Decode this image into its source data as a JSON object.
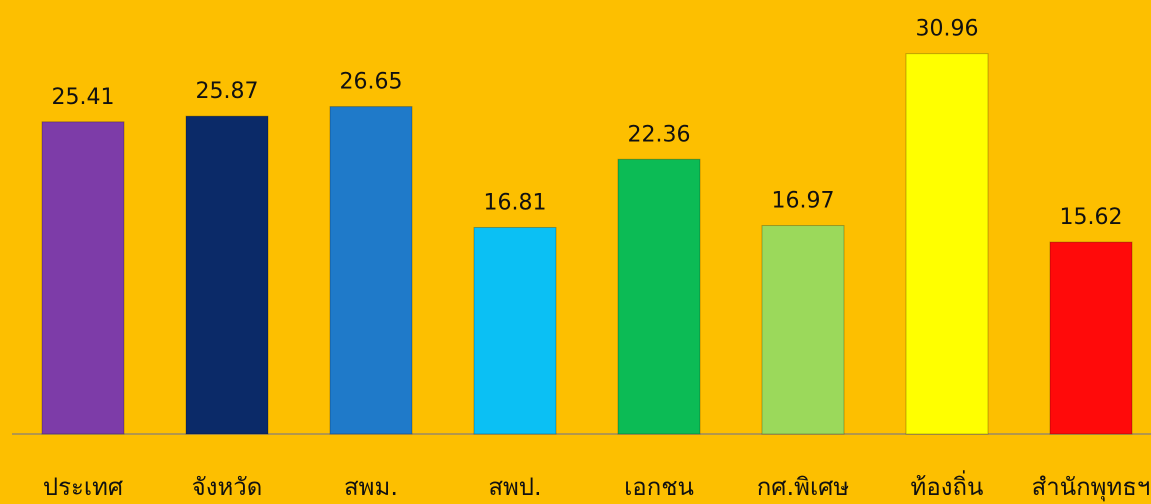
{
  "chart_data": {
    "type": "bar",
    "categories": [
      "ประเทศ",
      "จังหวัด",
      "สพม.",
      "สพป.",
      "เอกชน",
      "กศ.พิเศษ",
      "ท้องถิ่น",
      "สำนักพุทธฯ"
    ],
    "values": [
      25.41,
      25.87,
      26.65,
      16.81,
      22.36,
      16.97,
      30.96,
      15.62
    ],
    "colors": [
      "#7d3ca8",
      "#0b2a68",
      "#1f7ac9",
      "#0bc0f4",
      "#0cbb55",
      "#9bd95b",
      "#ffff00",
      "#ff0a0a"
    ],
    "ylim": [
      0,
      35
    ]
  }
}
